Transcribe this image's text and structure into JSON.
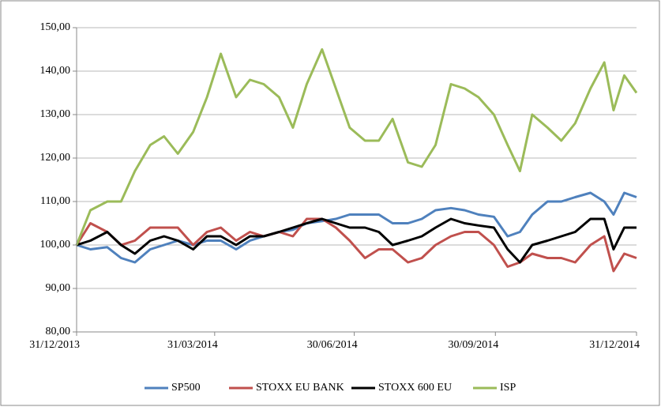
{
  "chart_data": {
    "type": "line",
    "x": [
      "31/12/2013",
      "09/01/2014",
      "20/01/2014",
      "29/01/2014",
      "07/02/2014",
      "17/02/2014",
      "26/02/2014",
      "07/03/2014",
      "17/03/2014",
      "26/03/2014",
      "04/04/2014",
      "14/04/2014",
      "23/04/2014",
      "02/05/2014",
      "12/05/2014",
      "21/05/2014",
      "30/05/2014",
      "09/06/2014",
      "18/06/2014",
      "27/06/2014",
      "07/07/2014",
      "16/07/2014",
      "25/07/2014",
      "04/08/2014",
      "13/08/2014",
      "22/08/2014",
      "01/09/2014",
      "10/09/2014",
      "19/09/2014",
      "29/09/2014",
      "08/10/2014",
      "16/10/2014",
      "24/10/2014",
      "03/11/2014",
      "12/11/2014",
      "21/11/2014",
      "01/12/2014",
      "10/12/2014",
      "16/12/2014",
      "23/12/2014",
      "31/12/2014"
    ],
    "xlim": [
      "31/12/2013",
      "31/12/2014"
    ],
    "xticks": [
      "31/12/2013",
      "31/03/2014",
      "30/06/2014",
      "30/09/2014",
      "31/12/2014"
    ],
    "ylim": [
      80,
      150
    ],
    "yticks": [
      {
        "value": 80,
        "label": "80,00"
      },
      {
        "value": 90,
        "label": "90,00"
      },
      {
        "value": 100,
        "label": "100,00"
      },
      {
        "value": 110,
        "label": "110,00"
      },
      {
        "value": 120,
        "label": "120,00"
      },
      {
        "value": 130,
        "label": "130,00"
      },
      {
        "value": 140,
        "label": "140,00"
      },
      {
        "value": 150,
        "label": "150,00"
      }
    ],
    "grid": true,
    "legend": "bottom",
    "series": [
      {
        "name": "SP500",
        "color": "#4f81bd",
        "values": [
          100,
          99,
          99.5,
          97,
          96,
          99,
          100,
          101,
          100,
          101,
          101,
          99,
          101,
          102,
          103,
          103.5,
          105,
          105.5,
          106,
          107,
          107,
          107,
          105,
          105,
          106,
          108,
          108.5,
          108,
          107,
          106.5,
          102,
          103,
          107,
          110,
          110,
          111,
          112,
          110,
          107,
          112,
          111
        ]
      },
      {
        "name": "STOXX EU BANK",
        "color": "#c0504d",
        "values": [
          100,
          105,
          103,
          100,
          101,
          104,
          104,
          104,
          100,
          103,
          104,
          101,
          103,
          102,
          103,
          102,
          106,
          106,
          104,
          101,
          97,
          99,
          99,
          96,
          97,
          100,
          102,
          103,
          103,
          100,
          95,
          96,
          98,
          97,
          97,
          96,
          100,
          102,
          94,
          98,
          97
        ]
      },
      {
        "name": "STOXX 600 EU",
        "color": "#000000",
        "values": [
          100,
          101,
          103,
          100,
          98,
          101,
          102,
          101,
          99,
          102,
          102,
          100,
          102,
          102,
          103,
          104,
          105,
          106,
          105,
          104,
          104,
          103,
          100,
          101,
          102,
          104,
          106,
          105,
          104.5,
          104,
          99,
          96,
          100,
          101,
          102,
          103,
          106,
          106,
          99,
          104,
          104
        ]
      },
      {
        "name": "ISP",
        "color": "#9bbb59",
        "values": [
          100,
          108,
          110,
          110,
          117,
          123,
          125,
          121,
          126,
          134,
          144,
          134,
          138,
          137,
          134,
          127,
          137,
          145,
          136,
          127,
          124,
          124,
          129,
          119,
          118,
          123,
          137,
          136,
          134,
          130,
          123,
          117,
          130,
          127,
          124,
          128,
          136,
          142,
          131,
          139,
          135
        ]
      }
    ]
  }
}
